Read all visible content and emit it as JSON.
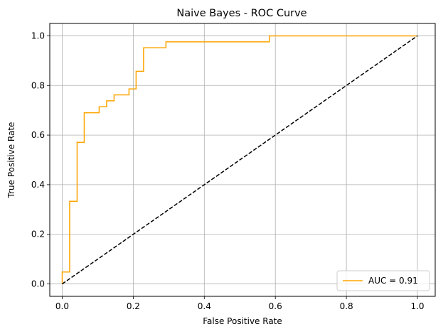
{
  "chart_data": {
    "type": "line",
    "title": "Naive Bayes - ROC Curve",
    "xlabel": "False Positive Rate",
    "ylabel": "True Positive Rate",
    "xlim": [
      -0.035,
      1.05
    ],
    "ylim": [
      -0.05,
      1.05
    ],
    "xticks": [
      0.0,
      0.2,
      0.4,
      0.6,
      0.8,
      1.0
    ],
    "yticks": [
      0.0,
      0.2,
      0.4,
      0.6,
      0.8,
      1.0
    ],
    "xtick_labels": [
      "0.0",
      "0.2",
      "0.4",
      "0.6",
      "0.8",
      "1.0"
    ],
    "ytick_labels": [
      "0.0",
      "0.2",
      "0.4",
      "0.6",
      "0.8",
      "1.0"
    ],
    "grid": true,
    "legend_position": "lower-right",
    "series": [
      {
        "name": "AUC = 0.91",
        "color": "#ffa500",
        "style": "solid",
        "x": [
          0.0,
          0.0,
          0.021,
          0.021,
          0.042,
          0.042,
          0.062,
          0.062,
          0.104,
          0.104,
          0.125,
          0.125,
          0.146,
          0.146,
          0.188,
          0.188,
          0.208,
          0.208,
          0.229,
          0.229,
          0.292,
          0.292,
          0.583,
          0.583,
          1.0
        ],
        "y": [
          0.0,
          0.048,
          0.048,
          0.333,
          0.333,
          0.571,
          0.571,
          0.69,
          0.69,
          0.714,
          0.714,
          0.738,
          0.738,
          0.762,
          0.762,
          0.786,
          0.786,
          0.857,
          0.857,
          0.952,
          0.952,
          0.976,
          0.976,
          1.0,
          1.0
        ]
      },
      {
        "color": "#000000",
        "style": "dashed",
        "x": [
          0.0,
          1.0
        ],
        "y": [
          0.0,
          1.0
        ]
      }
    ]
  }
}
